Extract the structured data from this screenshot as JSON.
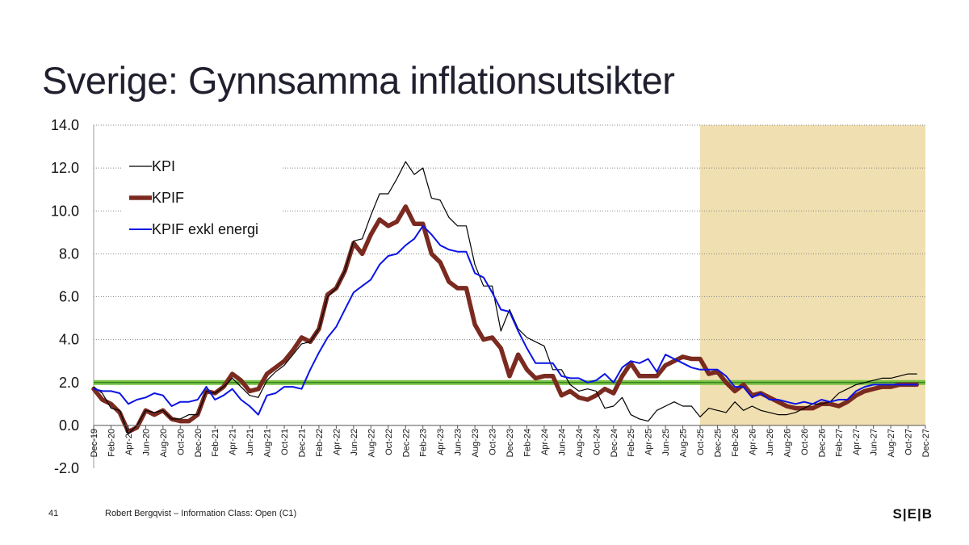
{
  "slide": {
    "title": "Sverige: Gynnsamma inflationsutsikter",
    "page_number": "41",
    "footer_text": "Robert Bergqvist – Information Class: Open (C1)",
    "logo_text": "S|E|B"
  },
  "colors": {
    "kpi": "#000000",
    "kpif": "#7b2a20",
    "kpif_exkl_energi": "#0a14e6",
    "target_line": "#7ac143",
    "forecast_shade": "#f0dfb0"
  },
  "chart_data": {
    "type": "line",
    "ylim": [
      -2.0,
      14.0
    ],
    "yticks": [
      "14.0",
      "12.0",
      "10.0",
      "8.0",
      "6.0",
      "4.0",
      "2.0",
      "0.0",
      "-2.0"
    ],
    "x_tick_labels": [
      "Dec-19",
      "Feb-20",
      "Apr-20",
      "Jun-20",
      "Aug-20",
      "Oct-20",
      "Dec-20",
      "Feb-21",
      "Apr-21",
      "Jun-21",
      "Aug-21",
      "Oct-21",
      "Dec-21",
      "Feb-22",
      "Apr-22",
      "Jun-22",
      "Aug-22",
      "Oct-22",
      "Dec-22",
      "Feb-23",
      "Apr-23",
      "Jun-23",
      "Aug-23",
      "Oct-23",
      "Dec-23",
      "Feb-24",
      "Apr-24",
      "Jun-24",
      "Aug-24",
      "Oct-24",
      "Dec-24",
      "Feb-25",
      "Apr-25",
      "Jun-25",
      "Aug-25",
      "Oct-25",
      "Dec-25",
      "Feb-26",
      "Apr-26",
      "Jun-26",
      "Aug-26",
      "Oct-26",
      "Dec-26",
      "Feb-27",
      "Apr-27",
      "Jun-27",
      "Aug-27",
      "Oct-27",
      "Dec-27"
    ],
    "x_start": "Dec-19",
    "x_end": "Dec-27",
    "forecast_start": "Oct-25",
    "target": 2.0,
    "grid": true,
    "legend": "top-left",
    "series": [
      {
        "name": "KPI",
        "values": [
          1.8,
          1.5,
          0.8,
          0.7,
          -0.4,
          0.0,
          0.7,
          0.6,
          0.7,
          0.3,
          0.3,
          0.5,
          0.5,
          1.6,
          1.5,
          1.8,
          2.2,
          1.8,
          1.4,
          1.3,
          2.1,
          2.5,
          2.8,
          3.3,
          3.8,
          3.9,
          4.5,
          6.0,
          6.4,
          7.2,
          8.6,
          8.7,
          9.8,
          10.8,
          10.8,
          11.5,
          12.3,
          11.7,
          12.0,
          10.6,
          10.5,
          9.7,
          9.3,
          9.3,
          7.5,
          6.5,
          6.5,
          4.4,
          5.4,
          4.5,
          4.1,
          3.9,
          3.7,
          2.6,
          2.6,
          1.9,
          1.6,
          1.7,
          1.6,
          0.8,
          0.9,
          1.3,
          0.5,
          0.3,
          0.2,
          0.7,
          0.9,
          1.1,
          0.9,
          0.9,
          0.4,
          0.8,
          0.7,
          0.6,
          1.1,
          0.7,
          0.9,
          0.7,
          0.6,
          0.5,
          0.5,
          0.6,
          0.8,
          1.0,
          1.0,
          1.1,
          1.5,
          1.7,
          1.9,
          2.0,
          2.1,
          2.2,
          2.2,
          2.3,
          2.4,
          2.4
        ],
        "forecast_from": "Oct-25"
      },
      {
        "name": "KPIF",
        "values": [
          1.7,
          1.2,
          1.0,
          0.6,
          -0.3,
          -0.1,
          0.7,
          0.5,
          0.7,
          0.3,
          0.2,
          0.2,
          0.5,
          1.6,
          1.5,
          1.8,
          2.4,
          2.1,
          1.6,
          1.7,
          2.4,
          2.7,
          3.0,
          3.5,
          4.1,
          3.9,
          4.5,
          6.1,
          6.4,
          7.2,
          8.5,
          8.0,
          8.9,
          9.6,
          9.3,
          9.5,
          10.2,
          9.4,
          9.4,
          8.0,
          7.6,
          6.7,
          6.4,
          6.4,
          4.7,
          4.0,
          4.1,
          3.6,
          2.3,
          3.3,
          2.6,
          2.2,
          2.3,
          2.3,
          1.4,
          1.6,
          1.3,
          1.2,
          1.4,
          1.7,
          1.5,
          2.3,
          2.9,
          2.3,
          2.3,
          2.3,
          2.8,
          3.0,
          3.2,
          3.1,
          3.1,
          2.4,
          2.5,
          2.0,
          1.6,
          1.9,
          1.4,
          1.5,
          1.3,
          1.1,
          0.9,
          0.8,
          0.8,
          0.8,
          1.0,
          1.0,
          0.9,
          1.1,
          1.4,
          1.6,
          1.7,
          1.8,
          1.8,
          1.9,
          1.9,
          1.9
        ],
        "forecast_from": "Oct-25"
      },
      {
        "name": "KPIF exkl energi",
        "values": [
          1.7,
          1.6,
          1.6,
          1.5,
          1.0,
          1.2,
          1.3,
          1.5,
          1.4,
          0.9,
          1.1,
          1.1,
          1.2,
          1.8,
          1.2,
          1.4,
          1.7,
          1.2,
          0.9,
          0.5,
          1.4,
          1.5,
          1.8,
          1.8,
          1.7,
          2.6,
          3.4,
          4.1,
          4.6,
          5.4,
          6.2,
          6.5,
          6.8,
          7.5,
          7.9,
          8.0,
          8.4,
          8.7,
          9.3,
          8.9,
          8.4,
          8.2,
          8.1,
          8.1,
          7.1,
          6.9,
          6.2,
          5.4,
          5.3,
          4.4,
          3.6,
          2.9,
          2.9,
          2.9,
          2.3,
          2.2,
          2.2,
          2.0,
          2.1,
          2.4,
          2.0,
          2.7,
          3.0,
          2.9,
          3.1,
          2.5,
          3.3,
          3.1,
          2.9,
          2.7,
          2.6,
          2.6,
          2.6,
          2.3,
          1.8,
          1.8,
          1.3,
          1.5,
          1.2,
          1.2,
          1.1,
          1.0,
          1.1,
          1.0,
          1.2,
          1.1,
          1.2,
          1.2,
          1.6,
          1.8,
          1.9,
          1.9,
          1.9,
          1.9,
          1.9,
          1.9
        ],
        "forecast_from": "Oct-25"
      }
    ]
  }
}
